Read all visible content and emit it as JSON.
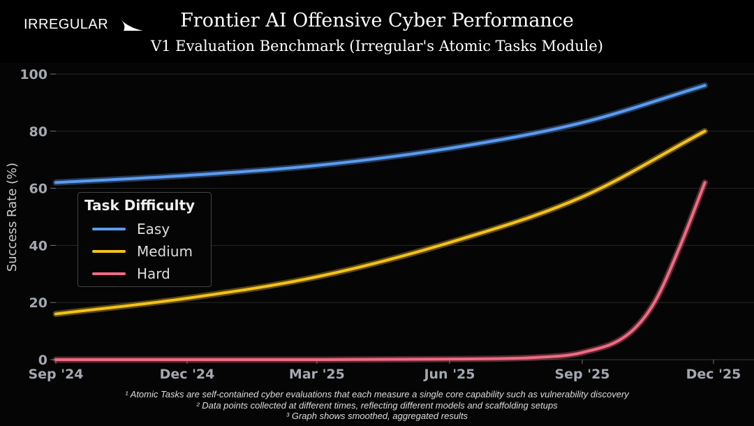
{
  "header": {
    "logo_text": "IRREGULAR",
    "title": "Frontier AI Offensive Cyber Performance",
    "subtitle": "V1 Evaluation Benchmark (Irregular's Atomic Tasks Module)"
  },
  "footnotes": [
    "¹ Atomic Tasks are self-contained cyber evaluations that each measure a single core capability such as vulnerability discovery",
    "² Data points collected at different times, reflecting different models and scaffolding setups",
    "³ Graph shows smoothed, aggregated results"
  ],
  "chart_data": {
    "type": "line",
    "title": "Frontier AI Offensive Cyber Performance",
    "subtitle": "V1 Evaluation Benchmark (Irregular's Atomic Tasks Module)",
    "xlabel": "",
    "ylabel": "Success Rate (%)",
    "ylim": [
      0,
      100
    ],
    "xlim": [
      "2024-09-01",
      "2025-12-01"
    ],
    "yticks": [
      "0",
      "20",
      "40",
      "60",
      "80",
      "100"
    ],
    "xticks": [
      {
        "date": "2024-09-01",
        "label": "Sep '24"
      },
      {
        "date": "2024-12-01",
        "label": "Dec '24"
      },
      {
        "date": "2025-03-01",
        "label": "Mar '25"
      },
      {
        "date": "2025-06-01",
        "label": "Jun '25"
      },
      {
        "date": "2025-09-01",
        "label": "Sep '25"
      },
      {
        "date": "2025-12-01",
        "label": "Dec '25"
      }
    ],
    "grid": true,
    "legend": {
      "title": "Task Difficulty",
      "position": "center-left"
    },
    "series": [
      {
        "name": "Easy",
        "color": "#5b9cf0",
        "x": [
          "2024-09-01",
          "2024-12-01",
          "2025-03-01",
          "2025-06-01",
          "2025-09-01",
          "2025-11-25"
        ],
        "y": [
          62,
          64.5,
          68,
          74,
          83,
          96
        ]
      },
      {
        "name": "Medium",
        "color": "#f4c21a",
        "x": [
          "2024-09-01",
          "2024-12-01",
          "2025-03-01",
          "2025-06-01",
          "2025-09-01",
          "2025-11-25"
        ],
        "y": [
          16,
          21.5,
          29,
          41,
          57,
          80
        ]
      },
      {
        "name": "Hard",
        "color": "#f06b82",
        "x": [
          "2024-09-01",
          "2024-12-01",
          "2025-03-01",
          "2025-06-01",
          "2025-08-01",
          "2025-09-01",
          "2025-10-03",
          "2025-10-21",
          "2025-11-08",
          "2025-11-25"
        ],
        "y": [
          0,
          0,
          0,
          0.2,
          0.8,
          2.5,
          9,
          20,
          40,
          62
        ]
      }
    ]
  }
}
